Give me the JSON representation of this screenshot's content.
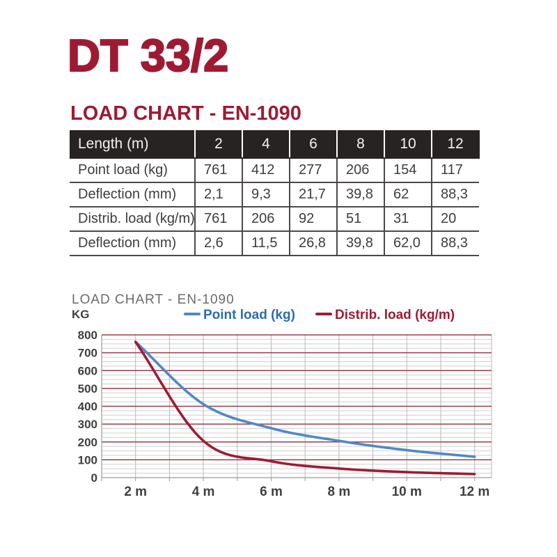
{
  "page": {
    "title": "DT 33/2",
    "subtitle": "LOAD CHART - EN-1090"
  },
  "table": {
    "header": {
      "label": "Length (m)",
      "columns": [
        "2",
        "4",
        "6",
        "8",
        "10",
        "12"
      ]
    },
    "rows": [
      {
        "label": "Point load (kg)",
        "values": [
          "761",
          "412",
          "277",
          "206",
          "154",
          "117"
        ]
      },
      {
        "label": "Deflection (mm)",
        "values": [
          "2,1",
          "9,3",
          "21,7",
          "39,8",
          "62",
          "88,3"
        ]
      },
      {
        "label": "Distrib. load (kg/m)",
        "values": [
          "761",
          "206",
          "92",
          "51",
          "31",
          "20"
        ]
      },
      {
        "label": "Deflection (mm)",
        "values": [
          "2,6",
          "11,5",
          "26,8",
          "39,8",
          "62,0",
          "88,3"
        ]
      }
    ]
  },
  "chart_data": {
    "type": "line",
    "title": "LOAD CHART - EN-1090",
    "ylabel": "KG",
    "xlabel": "",
    "x": [
      2,
      4,
      6,
      8,
      10,
      12
    ],
    "x_tick_labels": [
      "2 m",
      "4 m",
      "6 m",
      "8 m",
      "10 m",
      "12 m"
    ],
    "series": [
      {
        "name": "Point load (kg)",
        "color": "#5089c4",
        "text_color": "#2d6cac",
        "values": [
          761,
          412,
          277,
          206,
          154,
          117
        ]
      },
      {
        "name": "Distrib. load (kg/m)",
        "color": "#9c1c34",
        "text_color": "#9e1a33",
        "values": [
          761,
          206,
          92,
          51,
          31,
          20
        ]
      }
    ],
    "ylim": [
      0,
      800
    ],
    "xlim": [
      1,
      12.5
    ],
    "y_major_step": 100,
    "y_minor_step": 25,
    "x_minor_step": 1,
    "grid": true,
    "legend_position": "top",
    "colors": {
      "major_grid": "#9a3b49",
      "minor_grid": "#cfcfcf",
      "vertical_grid": "#b8b8b8",
      "axis": "#9a9a9a",
      "tick_label": "#3f3f3f"
    }
  }
}
